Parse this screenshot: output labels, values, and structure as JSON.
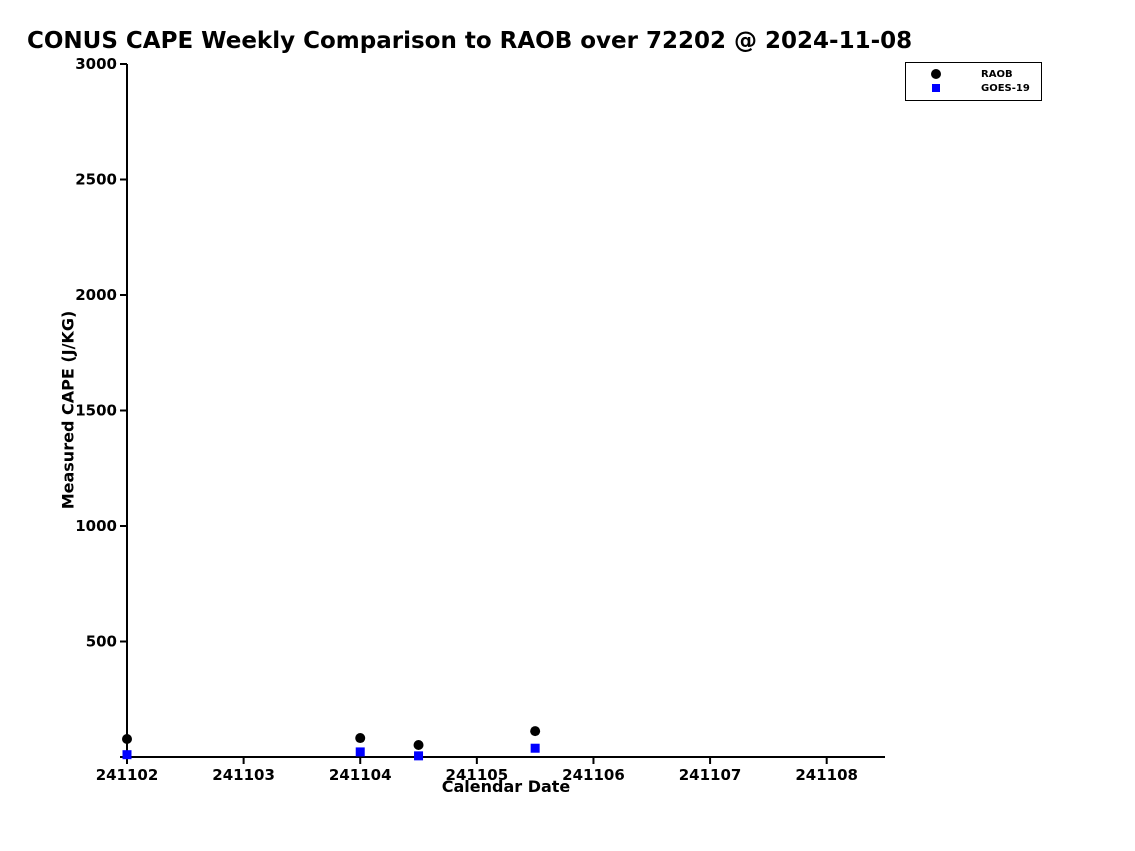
{
  "chart_data": {
    "type": "scatter",
    "title": "CONUS CAPE Weekly Comparison to RAOB over 72202 @ 2024-11-08",
    "xlabel": "Calendar Date",
    "ylabel": "Measured CAPE (J/KG)",
    "xlim": [
      241102,
      241108.5
    ],
    "ylim": [
      0,
      3000
    ],
    "x_ticks": [
      241102,
      241103,
      241104,
      241105,
      241106,
      241107,
      241108
    ],
    "y_ticks": [
      0,
      500,
      1000,
      1500,
      2000,
      2500,
      3000
    ],
    "grid": false,
    "legend_position": "top-right",
    "series": [
      {
        "name": "RAOB",
        "marker": "circle",
        "color": "#000000",
        "points": [
          {
            "x": 241102.0,
            "y": 78
          },
          {
            "x": 241104.0,
            "y": 82
          },
          {
            "x": 241104.5,
            "y": 52
          },
          {
            "x": 241105.5,
            "y": 112
          }
        ]
      },
      {
        "name": "GOES-19",
        "marker": "square",
        "color": "#0000ff",
        "points": [
          {
            "x": 241102.0,
            "y": 10
          },
          {
            "x": 241104.0,
            "y": 22
          },
          {
            "x": 241104.5,
            "y": 5
          },
          {
            "x": 241105.5,
            "y": 38
          }
        ]
      }
    ]
  }
}
